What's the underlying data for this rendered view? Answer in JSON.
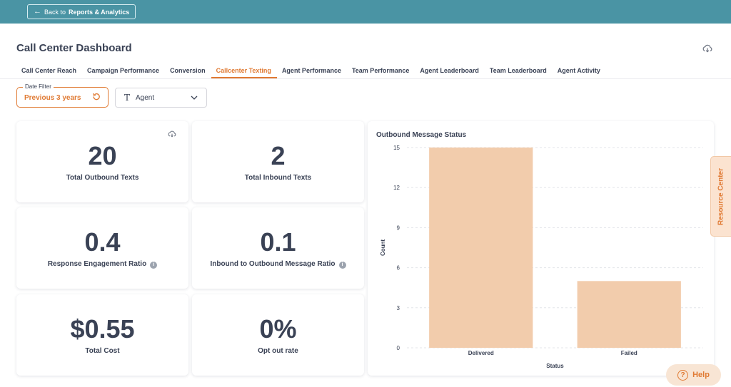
{
  "header": {
    "back_prefix": "Back to",
    "back_target": "Reports & Analytics"
  },
  "page": {
    "title": "Call Center Dashboard"
  },
  "tabs": [
    {
      "label": "Call Center Reach",
      "active": false
    },
    {
      "label": "Campaign Performance",
      "active": false
    },
    {
      "label": "Conversion",
      "active": false
    },
    {
      "label": "Callcenter Texting",
      "active": true
    },
    {
      "label": "Agent Performance",
      "active": false
    },
    {
      "label": "Team Performance",
      "active": false
    },
    {
      "label": "Agent Leaderboard",
      "active": false
    },
    {
      "label": "Team Leaderboard",
      "active": false
    },
    {
      "label": "Agent Activity",
      "active": false
    }
  ],
  "filters": {
    "date_legend": "Date Filter",
    "date_value": "Previous 3 years",
    "agent_label": "Agent"
  },
  "metrics": {
    "outbound": {
      "value": "20",
      "label": "Total Outbound Texts"
    },
    "inbound": {
      "value": "2",
      "label": "Total Inbound Texts"
    },
    "engagement": {
      "value": "0.4",
      "label": "Response Engagement Ratio"
    },
    "in_out_ratio": {
      "value": "0.1",
      "label": "Inbound to Outbound Message Ratio"
    },
    "cost": {
      "value": "$0.55",
      "label": "Total Cost"
    },
    "opt_out": {
      "value": "0%",
      "label": "Opt out rate"
    }
  },
  "chart_data": {
    "type": "bar",
    "title": "Outbound Message Status",
    "categories": [
      "Delivered",
      "Failed"
    ],
    "values": [
      15,
      5
    ],
    "xlabel": "Status",
    "ylabel": "Count",
    "ylim": [
      0,
      15
    ],
    "yticks": [
      0,
      3,
      6,
      9,
      12,
      15
    ],
    "grid": true,
    "bar_color": "#f2ccac"
  },
  "side": {
    "resource_center": "Resource Center",
    "help": "Help"
  },
  "colors": {
    "accent": "#e07a33",
    "topbar": "#4a94a4",
    "text": "#3a4255"
  }
}
